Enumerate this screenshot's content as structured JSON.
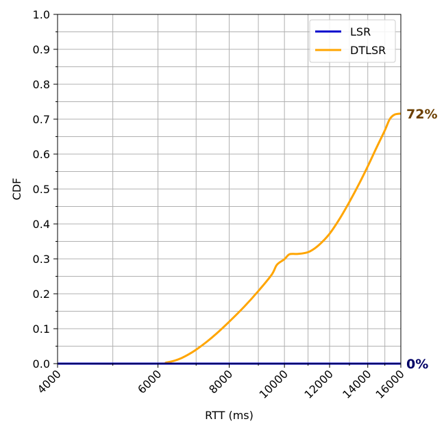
{
  "chart_data": {
    "type": "line",
    "title": "",
    "xlabel": "RTT (ms)",
    "ylabel": "CDF",
    "xscale": "log",
    "xlim": [
      4000,
      16000
    ],
    "ylim": [
      0.0,
      1.0
    ],
    "x_major_ticks": [
      4000,
      6000,
      8000,
      10000,
      12000,
      14000,
      16000
    ],
    "x_tick_labels": [
      "4000",
      "6000",
      "8000",
      "10000",
      "12000",
      "14000",
      "16000"
    ],
    "x_minor_ticks": [
      5000,
      7000,
      9000,
      11000,
      13000,
      15000
    ],
    "y_major_ticks": [
      0.0,
      0.1,
      0.2,
      0.3,
      0.4,
      0.5,
      0.6,
      0.7,
      0.8,
      0.9,
      1.0
    ],
    "y_tick_labels": [
      "0.0",
      "0.1",
      "0.2",
      "0.3",
      "0.4",
      "0.5",
      "0.6",
      "0.7",
      "0.8",
      "0.9",
      "1.0"
    ],
    "y_minor_ticks": [
      0.05,
      0.15,
      0.25,
      0.35,
      0.45,
      0.55,
      0.65,
      0.75,
      0.85,
      0.95
    ],
    "grid": true,
    "legend": "top-right",
    "series": [
      {
        "name": "LSR",
        "color": "#0000cc",
        "x": [
          4000,
          16000
        ],
        "y": [
          0.0,
          0.0
        ],
        "end_label": "0%",
        "end_label_color": "#000066"
      },
      {
        "name": "DTLSR",
        "color": "#ffa500",
        "x": [
          4000,
          6000,
          6200,
          6400,
          6600,
          6800,
          7000,
          7300,
          7600,
          8000,
          8500,
          9000,
          9500,
          9700,
          10000,
          10200,
          10500,
          10800,
          11100,
          11500,
          12000,
          12500,
          13000,
          13500,
          14000,
          14500,
          15000,
          15300,
          15600,
          16000
        ],
        "y": [
          0.0,
          0.0,
          0.003,
          0.008,
          0.016,
          0.027,
          0.04,
          0.062,
          0.086,
          0.12,
          0.163,
          0.208,
          0.255,
          0.283,
          0.299,
          0.313,
          0.314,
          0.316,
          0.322,
          0.34,
          0.372,
          0.415,
          0.463,
          0.513,
          0.565,
          0.618,
          0.668,
          0.7,
          0.713,
          0.716
        ],
        "end_label": "72%",
        "end_label_color": "#6b3f00"
      }
    ]
  }
}
